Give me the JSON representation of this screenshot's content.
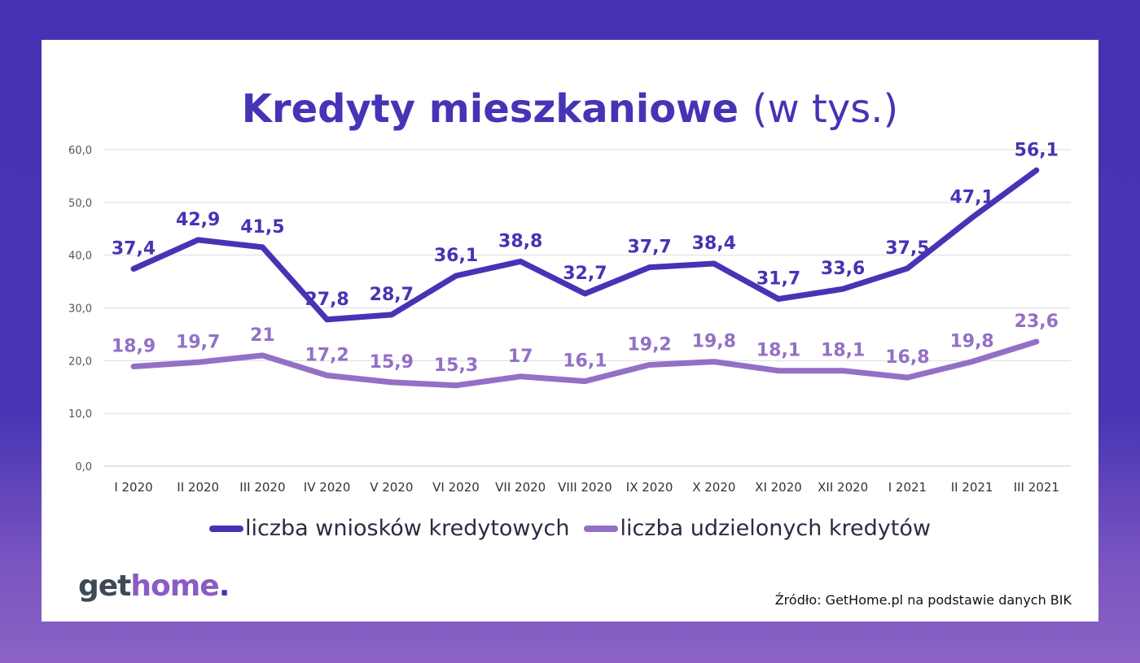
{
  "title": {
    "bold": "Kredyty mieszkaniowe",
    "light": "(w tys.)"
  },
  "chart_data": {
    "type": "line",
    "categories": [
      "I 2020",
      "II 2020",
      "III 2020",
      "IV 2020",
      "V 2020",
      "VI 2020",
      "VII 2020",
      "VIII 2020",
      "IX 2020",
      "X 2020",
      "XI 2020",
      "XII 2020",
      "I 2021",
      "II 2021",
      "III 2021"
    ],
    "series": [
      {
        "name": "liczba wniosków kredytowych",
        "color": "#4534b5",
        "values": [
          37.4,
          42.9,
          41.5,
          27.8,
          28.7,
          36.1,
          38.8,
          32.7,
          37.7,
          38.4,
          31.7,
          33.6,
          37.5,
          47.1,
          56.1
        ],
        "labels": [
          "37,4",
          "42,9",
          "41,5",
          "27,8",
          "28,7",
          "36,1",
          "38,8",
          "32,7",
          "37,7",
          "38,4",
          "31,7",
          "33,6",
          "37,5",
          "47,1",
          "56,1"
        ]
      },
      {
        "name": "liczba udzielonych kredytów",
        "color": "#9370c6",
        "values": [
          18.9,
          19.7,
          21,
          17.2,
          15.9,
          15.3,
          17,
          16.1,
          19.2,
          19.8,
          18.1,
          18.1,
          16.8,
          19.8,
          23.6
        ],
        "labels": [
          "18,9",
          "19,7",
          "21",
          "17,2",
          "15,9",
          "15,3",
          "17",
          "16,1",
          "19,2",
          "19,8",
          "18,1",
          "18,1",
          "16,8",
          "19,8",
          "23,6"
        ]
      }
    ],
    "ylim": [
      0,
      60
    ],
    "yticks": [
      "0,0",
      "10,0",
      "20,0",
      "30,0",
      "40,0",
      "50,0",
      "60,0"
    ],
    "grid": true,
    "legend_position": "bottom"
  },
  "logo": {
    "get": "get",
    "home": "home",
    "dot": "."
  },
  "source": "Źródło: GetHome.pl na podstawie danych BIK"
}
